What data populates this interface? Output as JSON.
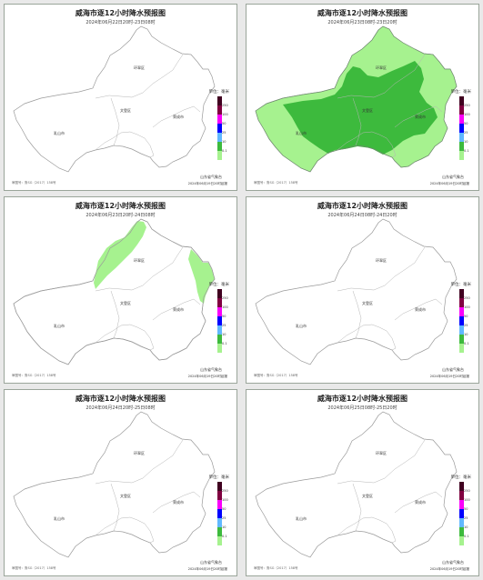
{
  "map_title": "威海市逐12小时降水预报图",
  "panels": [
    {
      "time_range": "2024年06月22日20时-23日08时",
      "rain": "none"
    },
    {
      "time_range": "2024年06月23日08时-23日20时",
      "rain": "heavy"
    },
    {
      "time_range": "2024年06月23日20时-24日08时",
      "rain": "light"
    },
    {
      "time_range": "2024年06月24日08时-24日20时",
      "rain": "none"
    },
    {
      "time_range": "2024年06月24日20时-25日08时",
      "rain": "none"
    },
    {
      "time_range": "2024年06月25日08时-25日20时",
      "rain": "none"
    }
  ],
  "places": {
    "north": "环翠区",
    "center": "文登区",
    "west": "乳山市",
    "east": "荣成市"
  },
  "legend": {
    "unit": "单位：毫米",
    "levels": [
      "0.1",
      "10",
      "25",
      "50",
      "100",
      "250"
    ],
    "colors": [
      "#a6f28f",
      "#3dba3d",
      "#61b8ff",
      "#0000fe",
      "#fa00fa",
      "#800040",
      "#400020"
    ]
  },
  "publisher": "山东省气象台",
  "issued": "2024年06月19日20时起报",
  "footnote": "审图号：鲁SG（2017）158号",
  "rain_colors": {
    "light": "#a6f28f",
    "heavy": "#3dba3d"
  }
}
